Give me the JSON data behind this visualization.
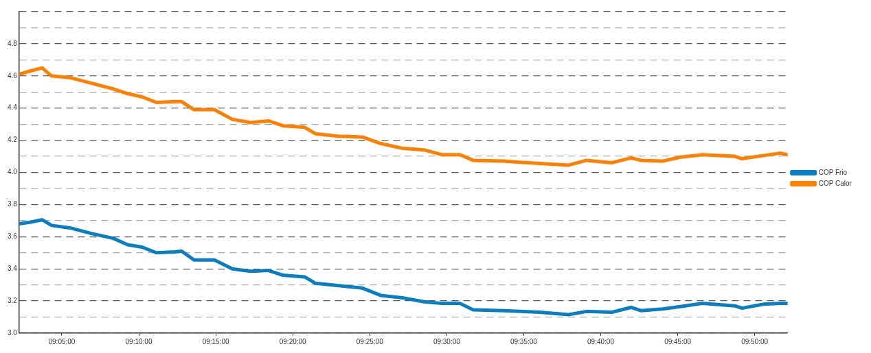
{
  "chart_data": {
    "type": "line",
    "x": [
      9.0372,
      9.0488,
      9.0621,
      9.0723,
      9.092,
      9.1154,
      9.1389,
      9.1545,
      9.1702,
      9.1858,
      9.2054,
      9.2132,
      9.2265,
      9.2485,
      9.268,
      9.2876,
      9.3071,
      9.3228,
      9.3462,
      9.358,
      9.383,
      9.4088,
      9.4284,
      9.4519,
      9.4754,
      9.4949,
      9.5144,
      9.5285,
      9.5614,
      9.6006,
      9.6319,
      9.6514,
      9.6788,
      9.6995,
      9.7101,
      9.7336,
      9.7531,
      9.7766,
      9.8118,
      9.8196,
      9.8431,
      9.8611,
      9.869
    ],
    "series": [
      {
        "name": "COP Frio",
        "color": "#0a7ec2",
        "values": [
          3.68,
          3.69,
          3.705,
          3.67,
          3.655,
          3.62,
          3.59,
          3.55,
          3.535,
          3.5,
          3.505,
          3.51,
          3.455,
          3.455,
          3.4,
          3.385,
          3.39,
          3.36,
          3.35,
          3.31,
          3.295,
          3.28,
          3.235,
          3.22,
          3.195,
          3.185,
          3.185,
          3.145,
          3.14,
          3.13,
          3.115,
          3.135,
          3.13,
          3.16,
          3.14,
          3.15,
          3.165,
          3.185,
          3.17,
          3.155,
          3.18,
          3.185,
          3.185
        ]
      },
      {
        "name": "COP Calor",
        "color": "#ff8000",
        "values": [
          4.61,
          4.63,
          4.65,
          4.6,
          4.59,
          4.555,
          4.52,
          4.49,
          4.47,
          4.435,
          4.44,
          4.44,
          4.39,
          4.39,
          4.33,
          4.31,
          4.32,
          4.29,
          4.28,
          4.24,
          4.225,
          4.22,
          4.18,
          4.15,
          4.14,
          4.11,
          4.11,
          4.075,
          4.07,
          4.055,
          4.045,
          4.075,
          4.06,
          4.09,
          4.075,
          4.07,
          4.095,
          4.11,
          4.1,
          4.085,
          4.105,
          4.12,
          4.11
        ]
      }
    ],
    "xlim": [
      9.0372,
      9.869
    ],
    "xticks": [
      {
        "value": 9.083333,
        "label": "09:05:00"
      },
      {
        "value": 9.166667,
        "label": "09:10:00"
      },
      {
        "value": 9.25,
        "label": "09:15:00"
      },
      {
        "value": 9.333333,
        "label": "09:20:00"
      },
      {
        "value": 9.416667,
        "label": "09:25:00"
      },
      {
        "value": 9.5,
        "label": "09:30:00"
      },
      {
        "value": 9.583333,
        "label": "09:35:00"
      },
      {
        "value": 9.666667,
        "label": "09:40:00"
      },
      {
        "value": 9.75,
        "label": "09:45:00"
      },
      {
        "value": 9.833333,
        "label": "09:50:00"
      }
    ],
    "ylim": [
      3.0,
      5.0
    ],
    "yticks": [
      {
        "value": 3.0,
        "label": "3.0"
      },
      {
        "value": 3.1,
        "label": null
      },
      {
        "value": 3.2,
        "label": "3.2"
      },
      {
        "value": 3.3,
        "label": null
      },
      {
        "value": 3.4,
        "label": "3.4"
      },
      {
        "value": 3.5,
        "label": null
      },
      {
        "value": 3.6,
        "label": "3.6"
      },
      {
        "value": 3.7,
        "label": null
      },
      {
        "value": 3.8,
        "label": "3.8"
      },
      {
        "value": 3.9,
        "label": null
      },
      {
        "value": 4.0,
        "label": "4.0"
      },
      {
        "value": 4.1,
        "label": null
      },
      {
        "value": 4.2,
        "label": "4.2"
      },
      {
        "value": 4.3,
        "label": null
      },
      {
        "value": 4.4,
        "label": "4.4"
      },
      {
        "value": 4.5,
        "label": null
      },
      {
        "value": 4.6,
        "label": "4.6"
      },
      {
        "value": 4.7,
        "label": null
      },
      {
        "value": 4.8,
        "label": "4.8"
      },
      {
        "value": 4.9,
        "label": null
      },
      {
        "value": 5.0,
        "label": null
      }
    ],
    "grid": "y",
    "legend": "right",
    "marker": "none",
    "line_style": "solid"
  }
}
